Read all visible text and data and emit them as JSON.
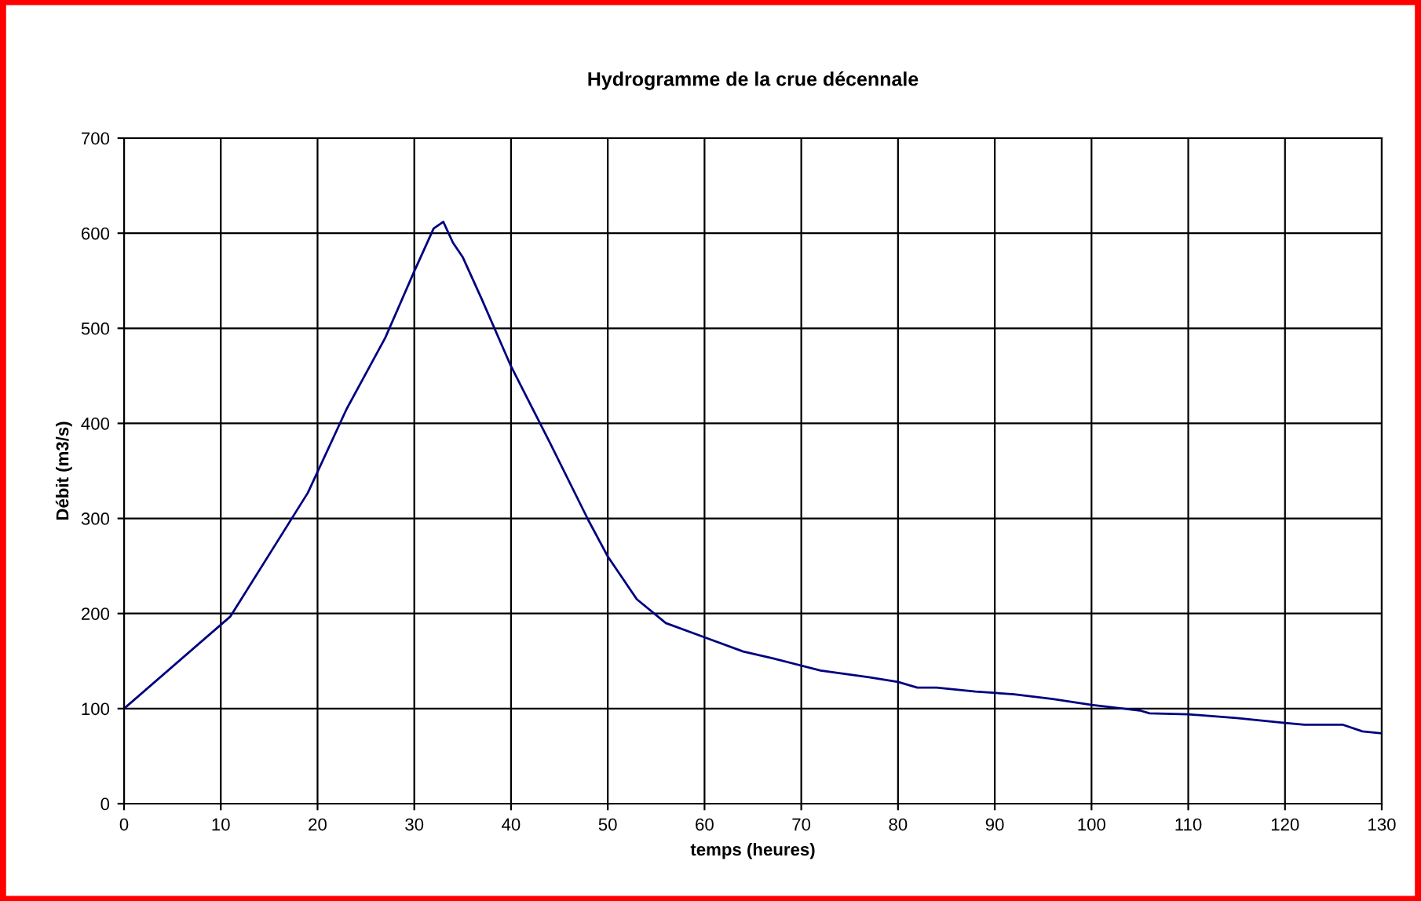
{
  "chart_data": {
    "type": "line",
    "title": "Hydrogramme de la crue décennale",
    "xlabel": "temps (heures)",
    "ylabel": "Débit (m3/s)",
    "series": [
      {
        "color": "#000080",
        "x": [
          0,
          11,
          19,
          23,
          27,
          30,
          32,
          33,
          34,
          35,
          37,
          40,
          44,
          48,
          50,
          53,
          56,
          60,
          64,
          67,
          72,
          77,
          80,
          82,
          84,
          88,
          92,
          96,
          100,
          105,
          106,
          110,
          115,
          120,
          122,
          126,
          128,
          130
        ],
        "values": [
          100,
          197,
          327,
          415,
          490,
          560,
          605,
          612,
          590,
          575,
          530,
          460,
          380,
          298,
          260,
          215,
          190,
          175,
          160,
          153,
          140,
          133,
          128,
          122,
          122,
          118,
          115,
          110,
          104,
          98,
          95,
          94,
          90,
          85,
          83,
          83,
          76,
          74
        ]
      }
    ],
    "xlim": [
      0,
      130
    ],
    "xticks": [
      0,
      10,
      20,
      30,
      40,
      50,
      60,
      70,
      80,
      90,
      100,
      110,
      120,
      130
    ],
    "ylim": [
      0,
      700
    ],
    "yticks": [
      0,
      100,
      200,
      300,
      400,
      500,
      600,
      700
    ],
    "grid": true,
    "marker": "none",
    "line_style": "solid"
  }
}
